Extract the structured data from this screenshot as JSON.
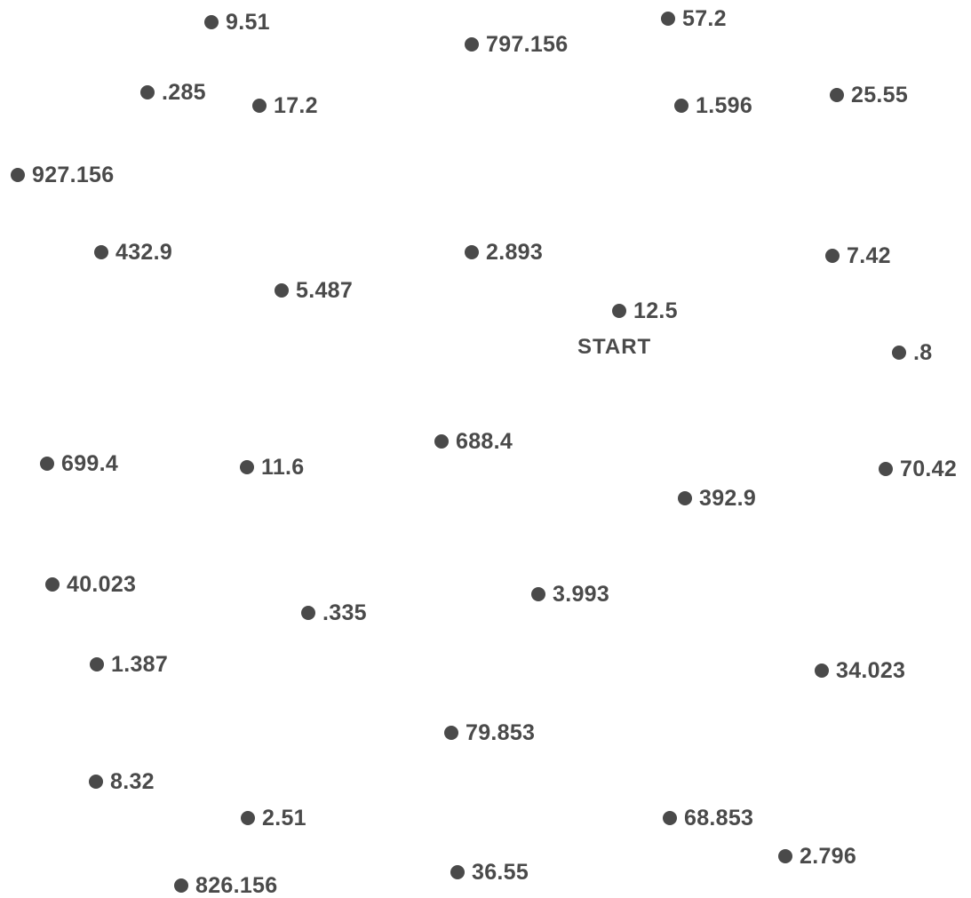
{
  "start_label": "START",
  "dot_color": "#4a4a4a",
  "dots": [
    {
      "label": "9.51"
    },
    {
      "label": "57.2"
    },
    {
      "label": "797.156"
    },
    {
      "label": ".285"
    },
    {
      "label": "17.2"
    },
    {
      "label": "1.596"
    },
    {
      "label": "25.55"
    },
    {
      "label": "927.156"
    },
    {
      "label": "432.9"
    },
    {
      "label": "2.893"
    },
    {
      "label": "7.42"
    },
    {
      "label": "5.487"
    },
    {
      "label": "12.5"
    },
    {
      "label": ".8"
    },
    {
      "label": "688.4"
    },
    {
      "label": "699.4"
    },
    {
      "label": "11.6"
    },
    {
      "label": "70.42"
    },
    {
      "label": "392.9"
    },
    {
      "label": "40.023"
    },
    {
      "label": "3.993"
    },
    {
      "label": ".335"
    },
    {
      "label": "1.387"
    },
    {
      "label": "34.023"
    },
    {
      "label": "79.853"
    },
    {
      "label": "8.32"
    },
    {
      "label": "2.51"
    },
    {
      "label": "68.853"
    },
    {
      "label": "2.796"
    },
    {
      "label": "36.55"
    },
    {
      "label": "826.156"
    }
  ]
}
